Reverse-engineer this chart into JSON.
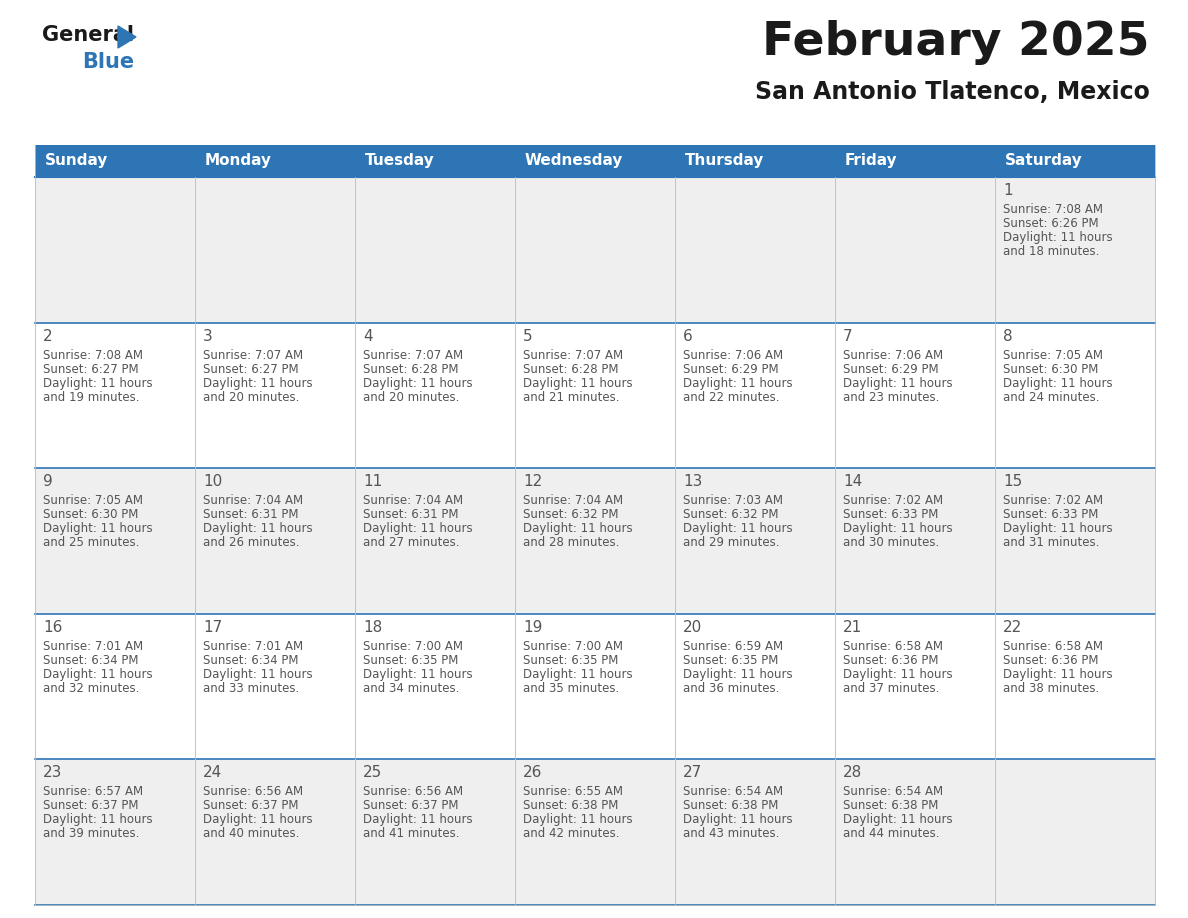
{
  "title": "February 2025",
  "subtitle": "San Antonio Tlatenco, Mexico",
  "header_bg": "#2e75b6",
  "header_text_color": "#ffffff",
  "cell_bg_even": "#efefef",
  "cell_bg_odd": "#ffffff",
  "day_names": [
    "Sunday",
    "Monday",
    "Tuesday",
    "Wednesday",
    "Thursday",
    "Friday",
    "Saturday"
  ],
  "days": [
    {
      "day": 1,
      "col": 6,
      "row": 0,
      "sunrise": "7:08 AM",
      "sunset": "6:26 PM",
      "daylight": "11 hours and 18 minutes."
    },
    {
      "day": 2,
      "col": 0,
      "row": 1,
      "sunrise": "7:08 AM",
      "sunset": "6:27 PM",
      "daylight": "11 hours and 19 minutes."
    },
    {
      "day": 3,
      "col": 1,
      "row": 1,
      "sunrise": "7:07 AM",
      "sunset": "6:27 PM",
      "daylight": "11 hours and 20 minutes."
    },
    {
      "day": 4,
      "col": 2,
      "row": 1,
      "sunrise": "7:07 AM",
      "sunset": "6:28 PM",
      "daylight": "11 hours and 20 minutes."
    },
    {
      "day": 5,
      "col": 3,
      "row": 1,
      "sunrise": "7:07 AM",
      "sunset": "6:28 PM",
      "daylight": "11 hours and 21 minutes."
    },
    {
      "day": 6,
      "col": 4,
      "row": 1,
      "sunrise": "7:06 AM",
      "sunset": "6:29 PM",
      "daylight": "11 hours and 22 minutes."
    },
    {
      "day": 7,
      "col": 5,
      "row": 1,
      "sunrise": "7:06 AM",
      "sunset": "6:29 PM",
      "daylight": "11 hours and 23 minutes."
    },
    {
      "day": 8,
      "col": 6,
      "row": 1,
      "sunrise": "7:05 AM",
      "sunset": "6:30 PM",
      "daylight": "11 hours and 24 minutes."
    },
    {
      "day": 9,
      "col": 0,
      "row": 2,
      "sunrise": "7:05 AM",
      "sunset": "6:30 PM",
      "daylight": "11 hours and 25 minutes."
    },
    {
      "day": 10,
      "col": 1,
      "row": 2,
      "sunrise": "7:04 AM",
      "sunset": "6:31 PM",
      "daylight": "11 hours and 26 minutes."
    },
    {
      "day": 11,
      "col": 2,
      "row": 2,
      "sunrise": "7:04 AM",
      "sunset": "6:31 PM",
      "daylight": "11 hours and 27 minutes."
    },
    {
      "day": 12,
      "col": 3,
      "row": 2,
      "sunrise": "7:04 AM",
      "sunset": "6:32 PM",
      "daylight": "11 hours and 28 minutes."
    },
    {
      "day": 13,
      "col": 4,
      "row": 2,
      "sunrise": "7:03 AM",
      "sunset": "6:32 PM",
      "daylight": "11 hours and 29 minutes."
    },
    {
      "day": 14,
      "col": 5,
      "row": 2,
      "sunrise": "7:02 AM",
      "sunset": "6:33 PM",
      "daylight": "11 hours and 30 minutes."
    },
    {
      "day": 15,
      "col": 6,
      "row": 2,
      "sunrise": "7:02 AM",
      "sunset": "6:33 PM",
      "daylight": "11 hours and 31 minutes."
    },
    {
      "day": 16,
      "col": 0,
      "row": 3,
      "sunrise": "7:01 AM",
      "sunset": "6:34 PM",
      "daylight": "11 hours and 32 minutes."
    },
    {
      "day": 17,
      "col": 1,
      "row": 3,
      "sunrise": "7:01 AM",
      "sunset": "6:34 PM",
      "daylight": "11 hours and 33 minutes."
    },
    {
      "day": 18,
      "col": 2,
      "row": 3,
      "sunrise": "7:00 AM",
      "sunset": "6:35 PM",
      "daylight": "11 hours and 34 minutes."
    },
    {
      "day": 19,
      "col": 3,
      "row": 3,
      "sunrise": "7:00 AM",
      "sunset": "6:35 PM",
      "daylight": "11 hours and 35 minutes."
    },
    {
      "day": 20,
      "col": 4,
      "row": 3,
      "sunrise": "6:59 AM",
      "sunset": "6:35 PM",
      "daylight": "11 hours and 36 minutes."
    },
    {
      "day": 21,
      "col": 5,
      "row": 3,
      "sunrise": "6:58 AM",
      "sunset": "6:36 PM",
      "daylight": "11 hours and 37 minutes."
    },
    {
      "day": 22,
      "col": 6,
      "row": 3,
      "sunrise": "6:58 AM",
      "sunset": "6:36 PM",
      "daylight": "11 hours and 38 minutes."
    },
    {
      "day": 23,
      "col": 0,
      "row": 4,
      "sunrise": "6:57 AM",
      "sunset": "6:37 PM",
      "daylight": "11 hours and 39 minutes."
    },
    {
      "day": 24,
      "col": 1,
      "row": 4,
      "sunrise": "6:56 AM",
      "sunset": "6:37 PM",
      "daylight": "11 hours and 40 minutes."
    },
    {
      "day": 25,
      "col": 2,
      "row": 4,
      "sunrise": "6:56 AM",
      "sunset": "6:37 PM",
      "daylight": "11 hours and 41 minutes."
    },
    {
      "day": 26,
      "col": 3,
      "row": 4,
      "sunrise": "6:55 AM",
      "sunset": "6:38 PM",
      "daylight": "11 hours and 42 minutes."
    },
    {
      "day": 27,
      "col": 4,
      "row": 4,
      "sunrise": "6:54 AM",
      "sunset": "6:38 PM",
      "daylight": "11 hours and 43 minutes."
    },
    {
      "day": 28,
      "col": 5,
      "row": 4,
      "sunrise": "6:54 AM",
      "sunset": "6:38 PM",
      "daylight": "11 hours and 44 minutes."
    }
  ],
  "num_rows": 5,
  "num_cols": 7,
  "logo_color_general": "#1a1a1a",
  "logo_color_blue": "#2e75b6",
  "logo_triangle_color": "#2e75b6",
  "divider_color": "#2e75b6",
  "text_color_day_number": "#555555",
  "text_color_info": "#555555",
  "grid_line_color": "#bbbbbb",
  "title_color": "#1a1a1a",
  "subtitle_color": "#1a1a1a"
}
